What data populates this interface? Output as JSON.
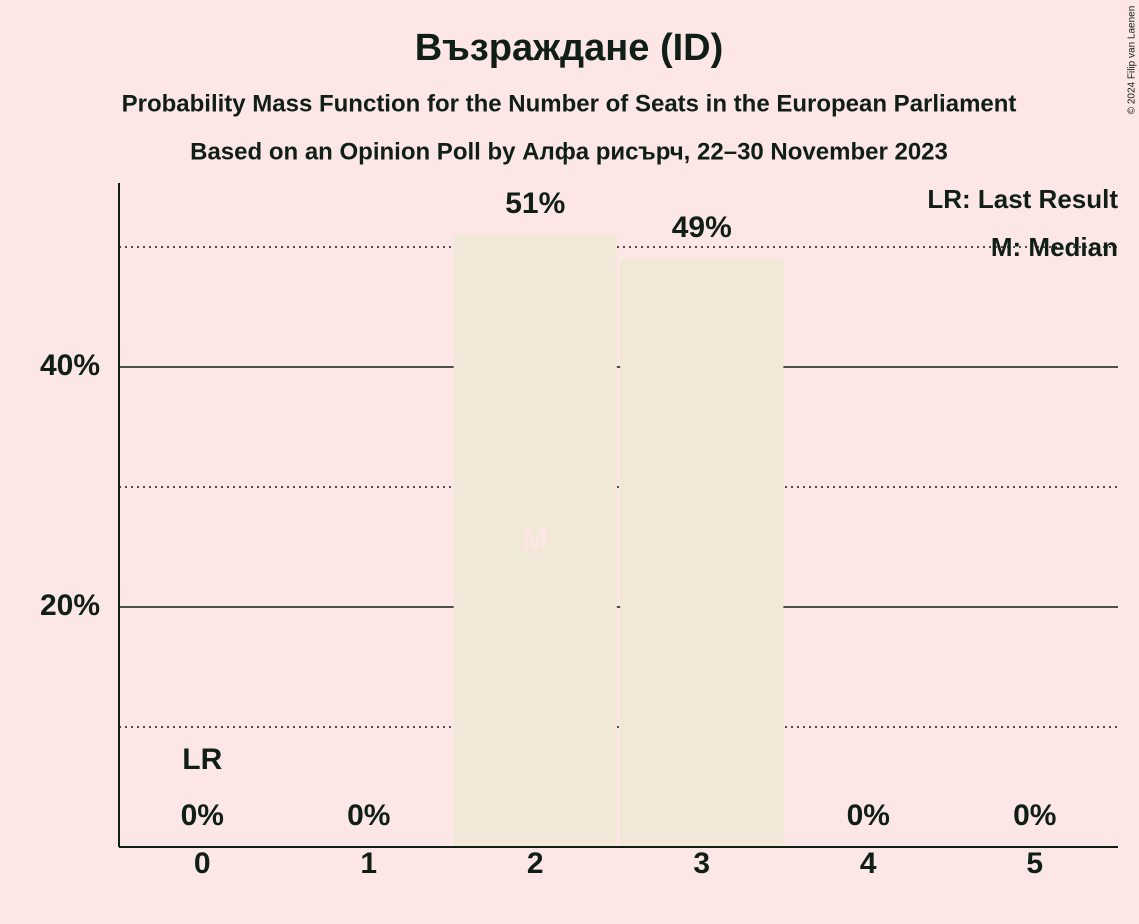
{
  "chart_data": {
    "type": "bar",
    "title": "Възраждане (ID)",
    "subtitle": "Probability Mass Function for the Number of Seats in the European Parliament",
    "subtitle2": "Based on an Opinion Poll by Алфа рисърч, 22–30 November 2023",
    "categories": [
      "0",
      "1",
      "2",
      "3",
      "4",
      "5"
    ],
    "values": [
      0,
      0,
      51,
      49,
      0,
      0
    ],
    "value_labels": [
      "0%",
      "0%",
      "51%",
      "49%",
      "0%",
      "0%"
    ],
    "color": "#f2e8d8",
    "ylim": [
      0,
      55
    ],
    "yticks": [
      {
        "value": 20,
        "label": "20%"
      },
      {
        "value": 40,
        "label": "40%"
      }
    ],
    "minor_gridlines": [
      10,
      30,
      50
    ],
    "grid": true,
    "markers": [
      {
        "category": "0",
        "label": "LR"
      },
      {
        "category": "2",
        "label": "M"
      }
    ],
    "legend": [
      "LR: Last Result",
      "M: Median"
    ],
    "legend_position": "upper right",
    "copyright": "© 2024 Filip van Laenen"
  }
}
